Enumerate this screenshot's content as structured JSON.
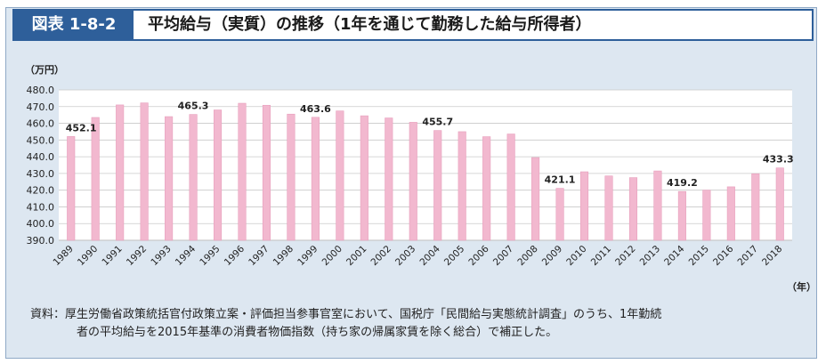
{
  "figure": {
    "number": "図表 1-8-2",
    "title": "平均給与（実質）の推移（1年を通じて勤務した給与所得者）"
  },
  "source": {
    "label": "資料：",
    "line1": "厚生労働省政策統括官付政策立案・評価担当参事官室において、国税庁「民間給与実態統計調査」のうち、1年勤続",
    "line2": "者の平均給与を2015年基準の消費者物価指数（持ち家の帰属家賃を除く総合）で補正した。"
  },
  "colors": {
    "bar": "#f2b8cf",
    "bar_stroke": "#e79fbc",
    "grid": "#c9c9c9",
    "plot_bg": "#ffffff"
  },
  "chart_data": {
    "type": "bar",
    "ylabel": "（万円）",
    "xlabel": "（年）",
    "ylim": [
      390.0,
      480.0
    ],
    "ytick_step": 10,
    "ytick_labels": [
      "390.0",
      "400.0",
      "410.0",
      "420.0",
      "430.0",
      "440.0",
      "450.0",
      "460.0",
      "470.0",
      "480.0"
    ],
    "grid": true,
    "categories": [
      "1989",
      "1990",
      "1991",
      "1992",
      "1993",
      "1994",
      "1995",
      "1996",
      "1997",
      "1998",
      "1999",
      "2000",
      "2001",
      "2002",
      "2003",
      "2004",
      "2005",
      "2006",
      "2007",
      "2008",
      "2009",
      "2010",
      "2011",
      "2012",
      "2013",
      "2014",
      "2015",
      "2016",
      "2017",
      "2018"
    ],
    "values": [
      452.1,
      463.5,
      471.0,
      472.2,
      464.0,
      465.3,
      468.0,
      472.0,
      470.8,
      465.5,
      463.6,
      467.4,
      464.5,
      463.2,
      460.6,
      455.7,
      455.0,
      452.0,
      453.6,
      439.5,
      421.1,
      431.0,
      428.5,
      427.5,
      431.5,
      419.2,
      420.0,
      422.0,
      429.8,
      433.3
    ],
    "data_labels": [
      {
        "index": 0,
        "text": "452.1"
      },
      {
        "index": 5,
        "text": "465.3"
      },
      {
        "index": 10,
        "text": "463.6"
      },
      {
        "index": 15,
        "text": "455.7"
      },
      {
        "index": 20,
        "text": "421.1"
      },
      {
        "index": 25,
        "text": "419.2"
      },
      {
        "index": 29,
        "text": "433.3"
      }
    ]
  }
}
